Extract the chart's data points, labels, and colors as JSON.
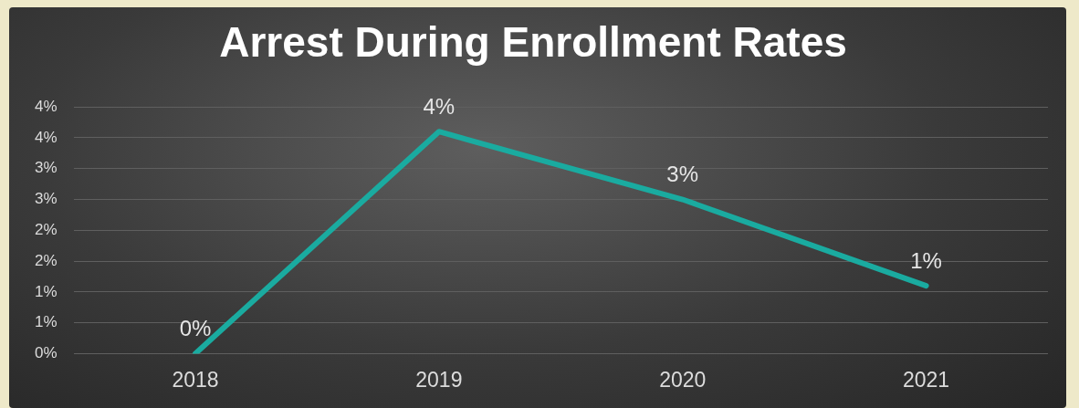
{
  "chart_data": {
    "type": "line",
    "title": "Arrest During Enrollment Rates",
    "categories": [
      "2018",
      "2019",
      "2020",
      "2021"
    ],
    "series": [
      {
        "color": "#1aaba0",
        "values": [
          0,
          3.6,
          2.5,
          1.1
        ],
        "value_labels": [
          "0%",
          "4%",
          "3%",
          "1%"
        ]
      }
    ],
    "ylim": [
      0,
      4
    ],
    "yticks": [
      {
        "value": 0,
        "label": "0%"
      },
      {
        "value": 0.5,
        "label": "1%"
      },
      {
        "value": 1,
        "label": "1%"
      },
      {
        "value": 1.5,
        "label": "2%"
      },
      {
        "value": 2,
        "label": "2%"
      },
      {
        "value": 2.5,
        "label": "3%"
      },
      {
        "value": 3,
        "label": "3%"
      },
      {
        "value": 3.5,
        "label": "4%"
      },
      {
        "value": 4,
        "label": "4%"
      }
    ],
    "grid": "y",
    "legend": false,
    "marker": "none",
    "line_style": "solid"
  }
}
